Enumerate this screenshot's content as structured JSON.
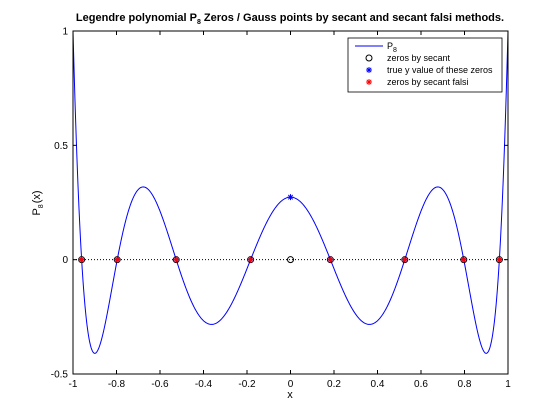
{
  "chart_data": {
    "type": "line",
    "title": {
      "prefix": "Legendre polynomial P",
      "subscript": "8",
      "suffix": " Zeros / Gauss points by secant and secant falsi methods."
    },
    "xlabel": "x",
    "ylabel": {
      "main": "P",
      "subscript": "8",
      "suffix": "(x)"
    },
    "xlim": [
      -1,
      1
    ],
    "ylim": [
      -0.5,
      1
    ],
    "xticks": [
      -1,
      -0.8,
      -0.6,
      -0.4,
      -0.2,
      0,
      0.2,
      0.4,
      0.6,
      0.8,
      1
    ],
    "xtick_labels": [
      "-1",
      "-0.8",
      "-0.6",
      "-0.4",
      "-0.2",
      "0",
      "0.2",
      "0.4",
      "0.6",
      "0.8",
      "1"
    ],
    "yticks": [
      -0.5,
      0,
      0.5,
      1
    ],
    "ytick_labels": [
      "-0.5",
      "0",
      "0.5",
      "1"
    ],
    "grid": false,
    "legend_position": "top-right",
    "series": [
      {
        "name": "P",
        "name_subscript": "8",
        "kind": "curve",
        "function": "legendre_P8",
        "color": "#0000ff",
        "linestyle": "solid"
      },
      {
        "name": "zeros by secant",
        "kind": "markers",
        "marker": "circle",
        "color": "#000000",
        "x": [
          -0.9603,
          -0.7967,
          -0.5255,
          -0.1834,
          0.0,
          0.1834,
          0.5255,
          0.7967,
          0.9603
        ],
        "y": [
          0,
          0,
          0,
          0,
          0,
          0,
          0,
          0,
          0
        ]
      },
      {
        "name": "true y value of these zeros",
        "kind": "markers",
        "marker": "asterisk",
        "color": "#0000ff",
        "x": [
          -0.9603,
          -0.7967,
          -0.5255,
          -0.1834,
          0.0,
          0.1834,
          0.5255,
          0.7967,
          0.9603
        ],
        "y": [
          0,
          0,
          0,
          0,
          0.2734,
          0,
          0,
          0,
          0
        ]
      },
      {
        "name": "zeros by secant falsi",
        "kind": "markers",
        "marker": "asterisk",
        "color": "#ff0000",
        "x": [
          -0.9603,
          -0.7967,
          -0.5255,
          -0.1834,
          0.1834,
          0.5255,
          0.7967,
          0.9603
        ],
        "y": [
          0,
          0,
          0,
          0,
          0,
          0,
          0,
          0
        ]
      },
      {
        "name": "",
        "kind": "reference-line",
        "color": "#000000",
        "linestyle": "dotted",
        "y": 0
      }
    ]
  }
}
